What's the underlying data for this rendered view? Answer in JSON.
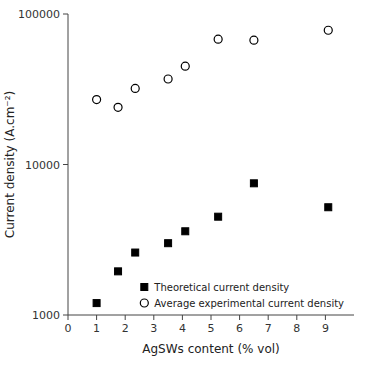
{
  "chart_data": {
    "type": "scatter",
    "x": [
      1.0,
      1.75,
      2.35,
      3.5,
      4.1,
      5.25,
      6.5,
      9.1
    ],
    "series": [
      {
        "name": "Theoretical current density",
        "color": "#000000",
        "marker": "square",
        "values": [
          1200,
          1950,
          2600,
          3000,
          3600,
          4500,
          7500,
          5200
        ]
      },
      {
        "name": "Average experimental current density",
        "color": "#000000",
        "marker": "open-circle",
        "values": [
          27000,
          24000,
          32000,
          37000,
          45000,
          68000,
          67000,
          78000
        ]
      }
    ],
    "x_label": "AgSWs content (% vol)",
    "y_label": "Current density (A.cm⁻²)",
    "xlim": [
      0,
      10
    ],
    "ylim": [
      1000,
      100000
    ],
    "xticks": [
      0,
      1,
      2,
      3,
      4,
      5,
      6,
      7,
      8,
      9
    ],
    "yticks": [
      1000,
      10000,
      100000
    ],
    "log": "y",
    "grid": false,
    "legend": "lower right"
  }
}
